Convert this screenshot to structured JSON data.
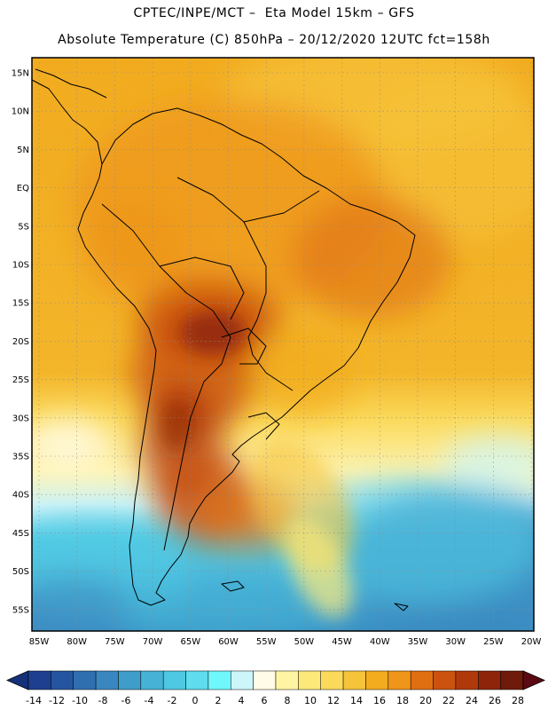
{
  "header": {
    "line1": "CPTEC/INPE/MCT –  Eta Model 15km – GFS",
    "line2": "Absolute Temperature (C) 850hPa – 20/12/2020 12UTC fct=158h"
  },
  "map": {
    "lat_labels": [
      "15N",
      "10N",
      "5N",
      "EQ",
      "5S",
      "10S",
      "15S",
      "20S",
      "25S",
      "30S",
      "35S",
      "40S",
      "45S",
      "50S",
      "55S"
    ],
    "lon_labels": [
      "85W",
      "80W",
      "75W",
      "70W",
      "65W",
      "60W",
      "55W",
      "50W",
      "45W",
      "40W",
      "35W",
      "30W",
      "25W",
      "20W"
    ]
  },
  "colorbar": {
    "labels": [
      "-14",
      "-12",
      "-10",
      "-8",
      "-6",
      "-4",
      "-2",
      "0",
      "2",
      "4",
      "6",
      "8",
      "10",
      "12",
      "14",
      "16",
      "18",
      "20",
      "22",
      "24",
      "26",
      "28"
    ],
    "colors": [
      "#1e3f8f",
      "#25559f",
      "#2f6fb0",
      "#3a87bf",
      "#3f9ec9",
      "#45b2d6",
      "#4ec8e2",
      "#5fdcee",
      "#6ff7fb",
      "#cdf6fb",
      "#fffbe6",
      "#fff4a3",
      "#fde97a",
      "#fbd95a",
      "#f6c43a",
      "#f2ac1e",
      "#ee951a",
      "#e06f12",
      "#cb520e",
      "#b0390c",
      "#8e250a",
      "#6f1a0a"
    ],
    "under_color": "#16317a",
    "over_color": "#5b0a14"
  }
}
